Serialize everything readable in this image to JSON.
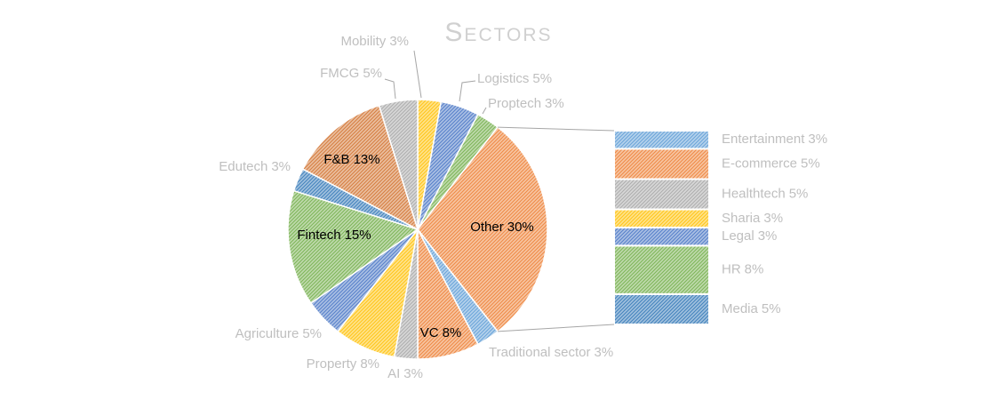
{
  "chart_data": {
    "type": "pie",
    "title": "Sectors",
    "categories": [
      "Mobility",
      "Logistics",
      "Proptech",
      "Other",
      "Traditional sector",
      "VC",
      "AI",
      "Property",
      "Agriculture",
      "Fintech",
      "Edutech",
      "F&B",
      "FMCG"
    ],
    "values": [
      3,
      5,
      3,
      30,
      3,
      8,
      3,
      8,
      5,
      15,
      3,
      13,
      5
    ],
    "value_labels": [
      "3%",
      "5%",
      "3%",
      "30%",
      "3%",
      "8%",
      "3%",
      "8%",
      "5%",
      "15%",
      "3%",
      "13%",
      "5%"
    ],
    "colors": [
      "#ffc000",
      "#4472c4",
      "#70ad47",
      "#ed7d31",
      "#5b9bd5",
      "#ed7d31",
      "#a5a5a5",
      "#ffc000",
      "#4472c4",
      "#70ad47",
      "#2e75b6",
      "#d0702c",
      "#a5a5a5"
    ],
    "breakdown": {
      "categories": [
        "Entertainment",
        "E-commerce",
        "Healthtech",
        "Sharia",
        "Legal",
        "HR",
        "Media"
      ],
      "values": [
        3,
        5,
        5,
        3,
        3,
        8,
        5
      ],
      "value_labels": [
        "3%",
        "5%",
        "5%",
        "3%",
        "3%",
        "8%",
        "5%"
      ],
      "colors": [
        "#5b9bd5",
        "#ed7d31",
        "#a5a5a5",
        "#ffc000",
        "#4472c4",
        "#70ad47",
        "#2e75b6"
      ]
    }
  }
}
